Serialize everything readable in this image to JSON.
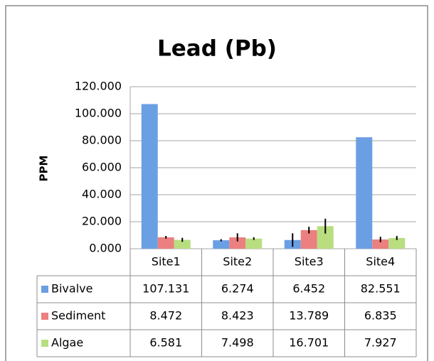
{
  "chart_data": {
    "type": "bar",
    "title": "Lead (Pb)",
    "y_label": "PPM",
    "categories": [
      "Site1",
      "Site2",
      "Site3",
      "Site4"
    ],
    "series": [
      {
        "name": "Bivalve",
        "color": "#6b9fe3",
        "values": [
          107.131,
          6.274,
          6.452,
          82.551
        ],
        "errors": [
          0,
          0.8,
          5,
          0
        ]
      },
      {
        "name": "Sediment",
        "color": "#ec7f7f",
        "values": [
          8.472,
          8.423,
          13.789,
          6.835
        ],
        "errors": [
          1,
          3,
          2.5,
          2
        ]
      },
      {
        "name": "Algae",
        "color": "#b9de80",
        "values": [
          6.581,
          7.498,
          16.701,
          7.927
        ],
        "errors": [
          1.5,
          1,
          5.5,
          1.5
        ]
      }
    ],
    "ylim": [
      0,
      120
    ],
    "yticks": [
      {
        "value": 0,
        "label": "0.000"
      },
      {
        "value": 20,
        "label": "20.000"
      },
      {
        "value": 40,
        "label": "40.000"
      },
      {
        "value": 60,
        "label": "60.000"
      },
      {
        "value": 80,
        "label": "80.000"
      },
      {
        "value": 100,
        "label": "100.000"
      },
      {
        "value": 120,
        "label": "120.000"
      }
    ],
    "grid": true,
    "legend": "table"
  }
}
